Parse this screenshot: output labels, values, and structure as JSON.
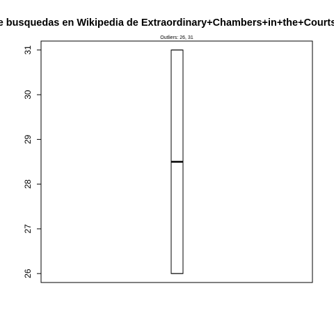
{
  "chart_data": {
    "type": "box",
    "title": "e busquedas en Wikipedia de Extraordinary+Chambers+in+the+Courts",
    "subtitle": "Outliers:  26, 31",
    "xlabel": "",
    "ylabel": "",
    "ylim": [
      25.8,
      31.2
    ],
    "yticks": [
      "26",
      "27",
      "28",
      "29",
      "30",
      "31"
    ],
    "box": {
      "min": 26,
      "q1": 26,
      "median": 28.5,
      "q3": 31,
      "max": 31
    },
    "grid": false
  }
}
